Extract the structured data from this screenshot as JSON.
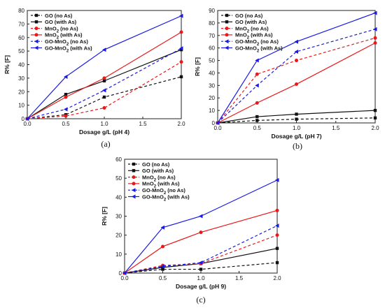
{
  "chart_data": [
    {
      "panel": "(a)",
      "type": "line",
      "xlabel": "Dosage g/L (pH 4)",
      "ylabel": "R% [F]",
      "xlim": [
        0,
        2
      ],
      "ylim": [
        0,
        80
      ],
      "xticks": [
        "0.0",
        "0.5",
        "1.0",
        "1.5",
        "2.0"
      ],
      "yticks": [
        "0",
        "10",
        "20",
        "30",
        "40",
        "50",
        "60",
        "70",
        "80"
      ],
      "x": [
        0,
        0.5,
        1.0,
        2.0
      ],
      "legend_position": "top-left",
      "series": [
        {
          "name": "GO (no As)",
          "values": [
            0,
            3,
            16,
            31
          ]
        },
        {
          "name": "GO (with As)",
          "values": [
            0,
            18,
            28,
            51
          ]
        },
        {
          "name": "MnO2 (no As)",
          "values": [
            0,
            2,
            8,
            42
          ]
        },
        {
          "name": "MnO2 (with As)",
          "values": [
            0,
            16,
            30,
            64
          ]
        },
        {
          "name": "GO-MnO2 (no As)",
          "values": [
            0,
            7,
            21,
            52
          ]
        },
        {
          "name": "GO-MnO2 (with As)",
          "values": [
            0,
            31,
            51,
            76
          ]
        }
      ]
    },
    {
      "panel": "(b)",
      "type": "line",
      "xlabel": "Dosage g/L (pH 7)",
      "ylabel": "R% [F]",
      "xlim": [
        0,
        2
      ],
      "ylim": [
        0,
        90
      ],
      "xticks": [
        "0.0",
        "0.5",
        "1.0",
        "1.5",
        "2.0"
      ],
      "yticks": [
        "0",
        "10",
        "20",
        "30",
        "40",
        "50",
        "60",
        "70",
        "80",
        "90"
      ],
      "x": [
        0,
        0.5,
        1.0,
        2.0
      ],
      "legend_position": "top-left",
      "series": [
        {
          "name": "GO (no As)",
          "values": [
            0,
            2,
            3,
            4
          ]
        },
        {
          "name": "GO (with As)",
          "values": [
            0,
            5,
            7,
            10
          ]
        },
        {
          "name": "MnO2 (no As)",
          "values": [
            0,
            39,
            50,
            68
          ]
        },
        {
          "name": "MnO2 (with As)",
          "values": [
            0,
            16,
            31,
            64
          ]
        },
        {
          "name": "GO-MnO2 (no As)",
          "values": [
            0,
            30,
            57,
            75
          ]
        },
        {
          "name": "GO-MnO2 (with As)",
          "values": [
            0,
            50,
            65,
            88
          ]
        }
      ]
    },
    {
      "panel": "(c)",
      "type": "line",
      "xlabel": "Dosage g/L (pH 9)",
      "ylabel": "R% [F]",
      "xlim": [
        0,
        2
      ],
      "ylim": [
        0,
        60
      ],
      "xticks": [
        "0.0",
        "0.5",
        "1.0",
        "1.5",
        "2.0"
      ],
      "yticks": [
        "0",
        "10",
        "20",
        "30",
        "40",
        "50",
        "60"
      ],
      "x": [
        0,
        0.5,
        1.0,
        2.0
      ],
      "legend_position": "top-left",
      "series": [
        {
          "name": "GO (no As)",
          "values": [
            0,
            2,
            2,
            5.5
          ]
        },
        {
          "name": "GO (with As)",
          "values": [
            0,
            3,
            5,
            13
          ]
        },
        {
          "name": "MnO2 (no As)",
          "values": [
            0,
            4,
            5,
            20
          ]
        },
        {
          "name": "MnO2 (with As)",
          "values": [
            0,
            14,
            21.5,
            33
          ]
        },
        {
          "name": "GO-MnO2 (no As)",
          "values": [
            0,
            3.5,
            5.5,
            25
          ]
        },
        {
          "name": "GO-MnO2 (with As)",
          "values": [
            0,
            24,
            30,
            49
          ]
        }
      ]
    }
  ],
  "series_style": [
    {
      "color": "#111111",
      "dash": true,
      "marker": "square"
    },
    {
      "color": "#111111",
      "dash": false,
      "marker": "square"
    },
    {
      "color": "#e8191b",
      "dash": true,
      "marker": "circle"
    },
    {
      "color": "#e8191b",
      "dash": false,
      "marker": "circle"
    },
    {
      "color": "#1a1ae6",
      "dash": true,
      "marker": "triangle-left"
    },
    {
      "color": "#1a1ae6",
      "dash": false,
      "marker": "triangle-left"
    }
  ]
}
